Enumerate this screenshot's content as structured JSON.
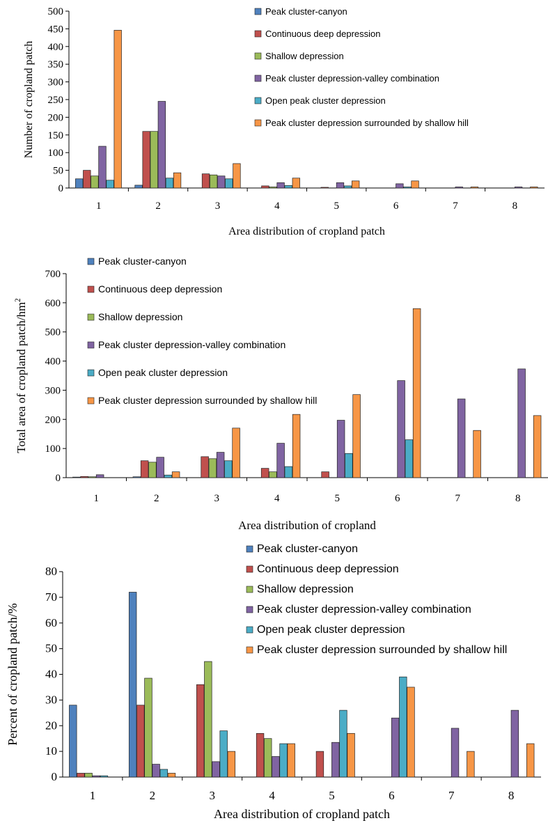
{
  "chart_data": [
    {
      "type": "bar",
      "title": "",
      "xlabel": "Area distribution of cropland patch",
      "ylabel": "Number of cropland patch",
      "ylim": [
        0,
        500
      ],
      "yticks": [
        "0",
        "50",
        "100",
        "150",
        "200",
        "250",
        "300",
        "350",
        "400",
        "450",
        "500"
      ],
      "categories": [
        "1",
        "2",
        "3",
        "4",
        "5",
        "6",
        "7",
        "8"
      ],
      "legend_position": "top-right",
      "series": [
        {
          "name": "Peak cluster-canyon",
          "color": "#4F81BD",
          "values": [
            26,
            8,
            0,
            0,
            0,
            0,
            0,
            0
          ]
        },
        {
          "name": "Continuous deep depression",
          "color": "#C0504D",
          "values": [
            50,
            160,
            40,
            6,
            2,
            0,
            0,
            0
          ]
        },
        {
          "name": "Shallow depression",
          "color": "#9BBB59",
          "values": [
            34,
            160,
            37,
            3,
            0,
            0,
            0,
            0
          ]
        },
        {
          "name": "Peak cluster depression-valley combination",
          "color": "#8064A2",
          "values": [
            118,
            245,
            34,
            15,
            15,
            12,
            3,
            3
          ]
        },
        {
          "name": "Open peak cluster depression",
          "color": "#4BACC6",
          "values": [
            22,
            28,
            26,
            7,
            6,
            3,
            0,
            0
          ]
        },
        {
          "name": "Peak cluster depression surrounded by shallow hill",
          "color": "#F79646",
          "values": [
            446,
            43,
            69,
            28,
            20,
            20,
            3,
            3
          ]
        }
      ]
    },
    {
      "type": "bar",
      "title": "",
      "xlabel": "Area distribution of cropland",
      "ylabel": "Total area of cropland patch/hm",
      "ylabel_superscript": "2",
      "ylim": [
        0,
        700
      ],
      "yticks": [
        "0",
        "100",
        "200",
        "300",
        "400",
        "500",
        "600",
        "700"
      ],
      "categories": [
        "1",
        "2",
        "3",
        "4",
        "5",
        "6",
        "7",
        "8"
      ],
      "legend_position": "top-left",
      "series": [
        {
          "name": "Peak cluster-canyon",
          "color": "#4F81BD",
          "values": [
            2,
            3,
            0,
            0,
            0,
            0,
            0,
            0
          ]
        },
        {
          "name": "Continuous deep depression",
          "color": "#C0504D",
          "values": [
            4,
            58,
            72,
            32,
            20,
            0,
            0,
            0
          ]
        },
        {
          "name": "Shallow depression",
          "color": "#9BBB59",
          "values": [
            3,
            53,
            65,
            20,
            0,
            0,
            0,
            0
          ]
        },
        {
          "name": "Peak cluster depression-valley combination",
          "color": "#8064A2",
          "values": [
            10,
            70,
            87,
            118,
            197,
            333,
            270,
            373
          ]
        },
        {
          "name": "Open peak cluster depression",
          "color": "#4BACC6",
          "values": [
            0,
            9,
            58,
            38,
            83,
            130,
            0,
            0
          ]
        },
        {
          "name": "Peak cluster depression surrounded by shallow hill",
          "color": "#F79646",
          "values": [
            0,
            20,
            170,
            217,
            285,
            580,
            162,
            213
          ]
        }
      ]
    },
    {
      "type": "bar",
      "title": "",
      "xlabel": "Area distribution of cropland patch",
      "ylabel": "Percent of cropland patch/%",
      "ylim": [
        0,
        80
      ],
      "yticks": [
        "0",
        "10",
        "20",
        "30",
        "40",
        "50",
        "60",
        "70",
        "80"
      ],
      "categories": [
        "1",
        "2",
        "3",
        "4",
        "5",
        "6",
        "7",
        "8"
      ],
      "legend_position": "top-right",
      "series": [
        {
          "name": "Peak cluster-canyon",
          "color": "#4F81BD",
          "values": [
            28,
            72,
            0,
            0,
            0,
            0,
            0,
            0
          ]
        },
        {
          "name": "Continuous deep depression",
          "color": "#C0504D",
          "values": [
            1.5,
            28,
            36,
            17,
            10,
            0,
            0,
            0
          ]
        },
        {
          "name": "Shallow depression",
          "color": "#9BBB59",
          "values": [
            1.5,
            38.5,
            45,
            15,
            0,
            0,
            0,
            0
          ]
        },
        {
          "name": "Peak cluster depression-valley combination",
          "color": "#8064A2",
          "values": [
            0.5,
            5,
            6,
            8,
            13.5,
            23,
            19,
            26
          ]
        },
        {
          "name": "Open peak cluster depression",
          "color": "#4BACC6",
          "values": [
            0.5,
            3,
            18,
            13,
            26,
            39,
            0,
            0
          ]
        },
        {
          "name": "Peak cluster depression surrounded by shallow hill",
          "color": "#F79646",
          "values": [
            0,
            1.5,
            10,
            13,
            17,
            35,
            10,
            13
          ]
        }
      ]
    }
  ]
}
